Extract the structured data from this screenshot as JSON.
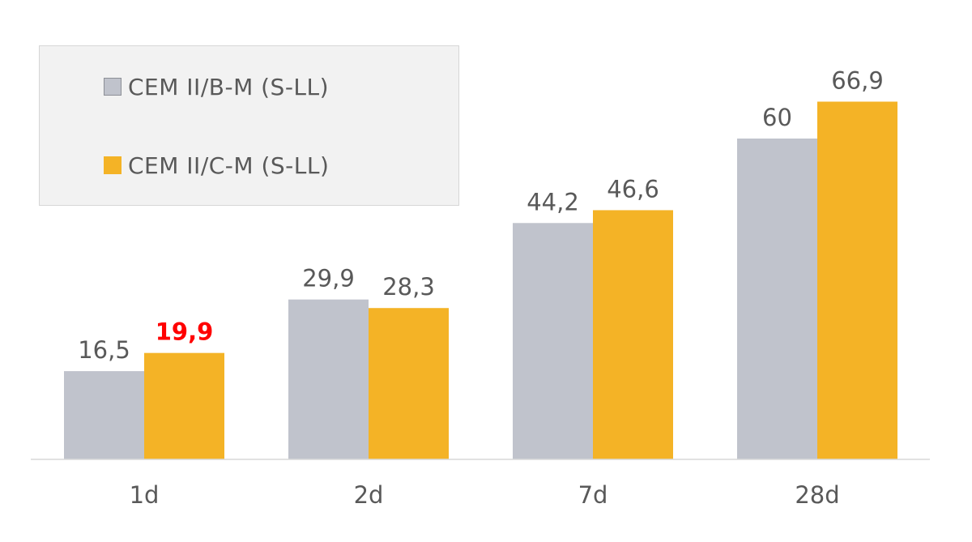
{
  "chart_data": {
    "type": "bar",
    "categories": [
      "1d",
      "2d",
      "7d",
      "28d"
    ],
    "series": [
      {
        "name": "CEM II/B-M (S-LL)",
        "values": [
          16.5,
          29.9,
          44.2,
          60
        ],
        "labels": [
          "16,5",
          "29,9",
          "44,2",
          "60"
        ],
        "color": "#c0c3cc"
      },
      {
        "name": "CEM II/C-M (S-LL)",
        "values": [
          19.9,
          28.3,
          46.6,
          66.9
        ],
        "labels": [
          "19,9",
          "28,3",
          "46,6",
          "66,9"
        ],
        "color": "#f4b326"
      }
    ],
    "highlight": {
      "series": 1,
      "index": 0,
      "color": "#ff0000"
    },
    "ylim": [
      0,
      70
    ],
    "grid": false,
    "legend_placement": "top-left"
  }
}
